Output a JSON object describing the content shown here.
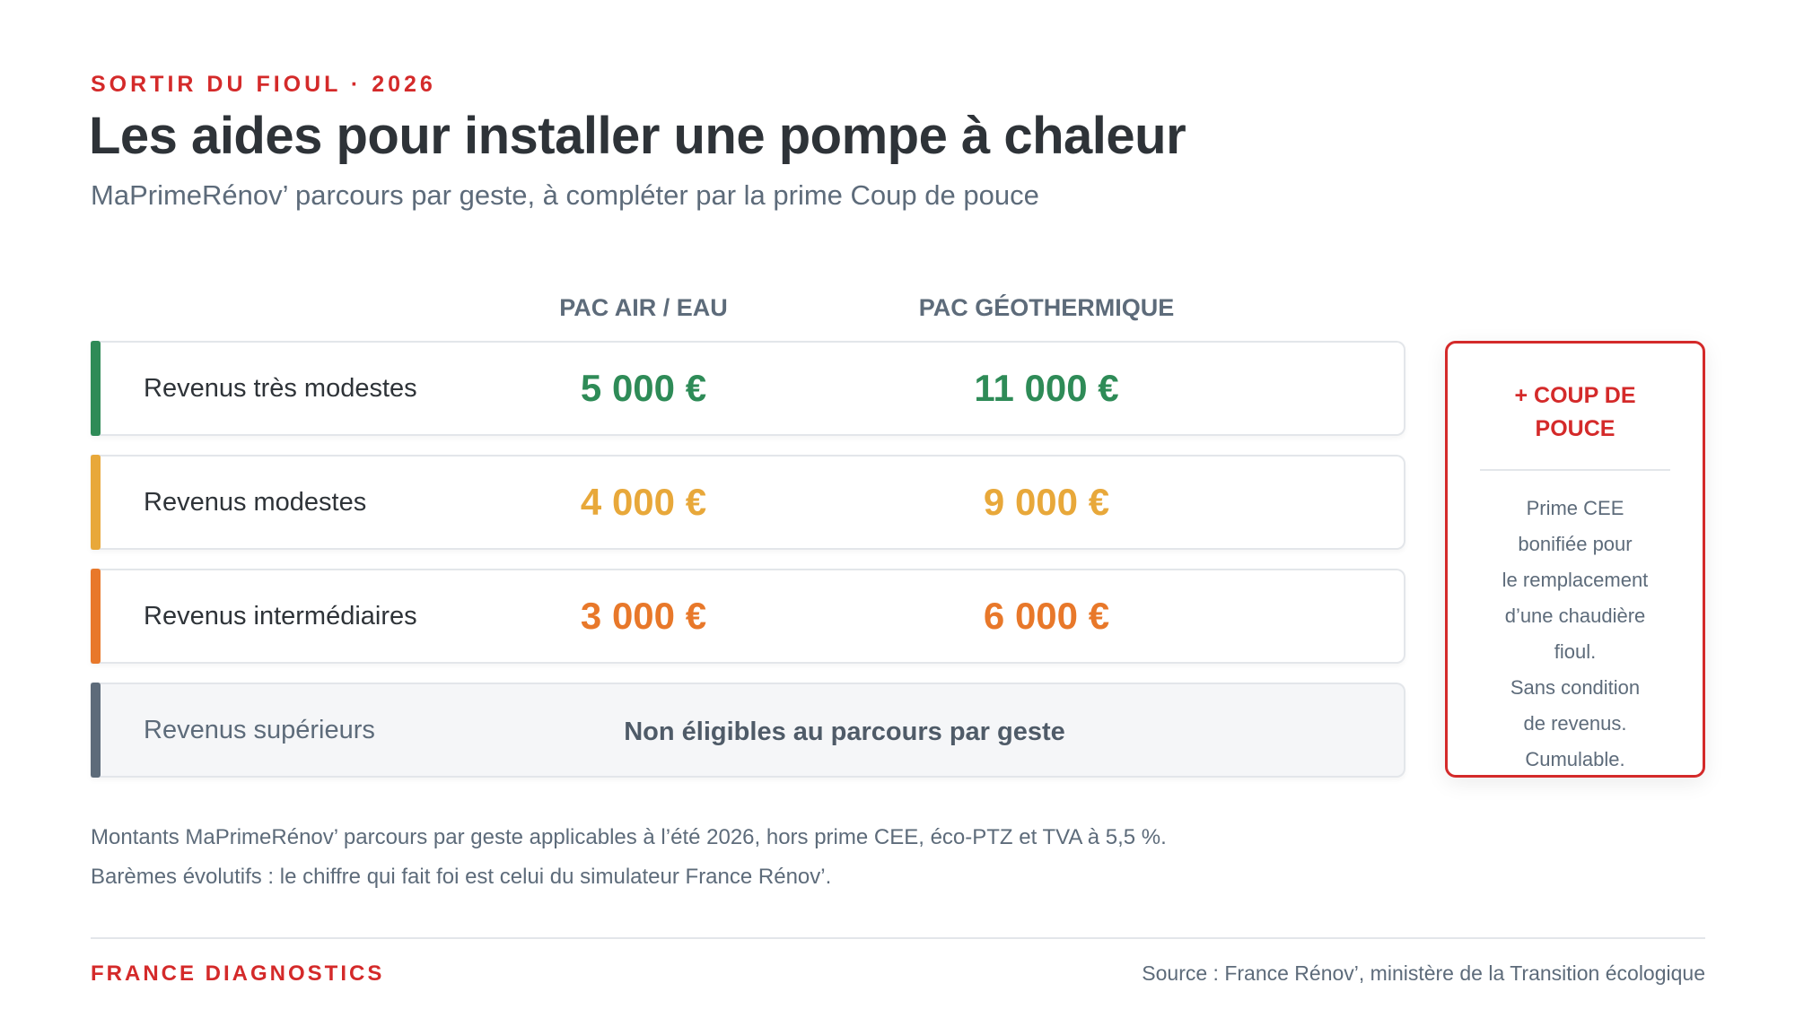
{
  "header": {
    "kicker": "SORTIR DU FIOUL · 2026",
    "title": "Les aides pour installer une pompe à chaleur",
    "subtitle": "MaPrimeRénov’ parcours par geste, à compléter par la prime Coup de pouce"
  },
  "table": {
    "columns": [
      "PAC AIR / EAU",
      "PAC GÉOTHERMIQUE"
    ],
    "rows": [
      {
        "label": "Revenus très modestes",
        "cells": [
          "5 000 €",
          "11 000 €"
        ]
      },
      {
        "label": "Revenus modestes",
        "cells": [
          "4 000 €",
          "9 000 €"
        ]
      },
      {
        "label": "Revenus intermédiaires",
        "cells": [
          "3 000 €",
          "6 000 €"
        ]
      },
      {
        "label": "Revenus supérieurs",
        "note": "Non éligibles au parcours par geste"
      }
    ]
  },
  "side": {
    "title": "+ COUP DE POUCE",
    "lines": [
      "Prime CEE",
      "bonifiée pour",
      "le remplacement",
      "d’une chaudière",
      "fioul.",
      "Sans condition",
      "de revenus.",
      "Cumulable."
    ]
  },
  "notes": [
    "Montants MaPrimeRénov’ parcours par geste applicables à l’été 2026, hors prime CEE, éco-PTZ et TVA à 5,5 %.",
    "Barèmes évolutifs : le chiffre qui fait foi est celui du simulateur France Rénov’."
  ],
  "footer": {
    "brand": "FRANCE DIAGNOSTICS",
    "source": "Source : France Rénov’, ministère de la Transition écologique"
  }
}
